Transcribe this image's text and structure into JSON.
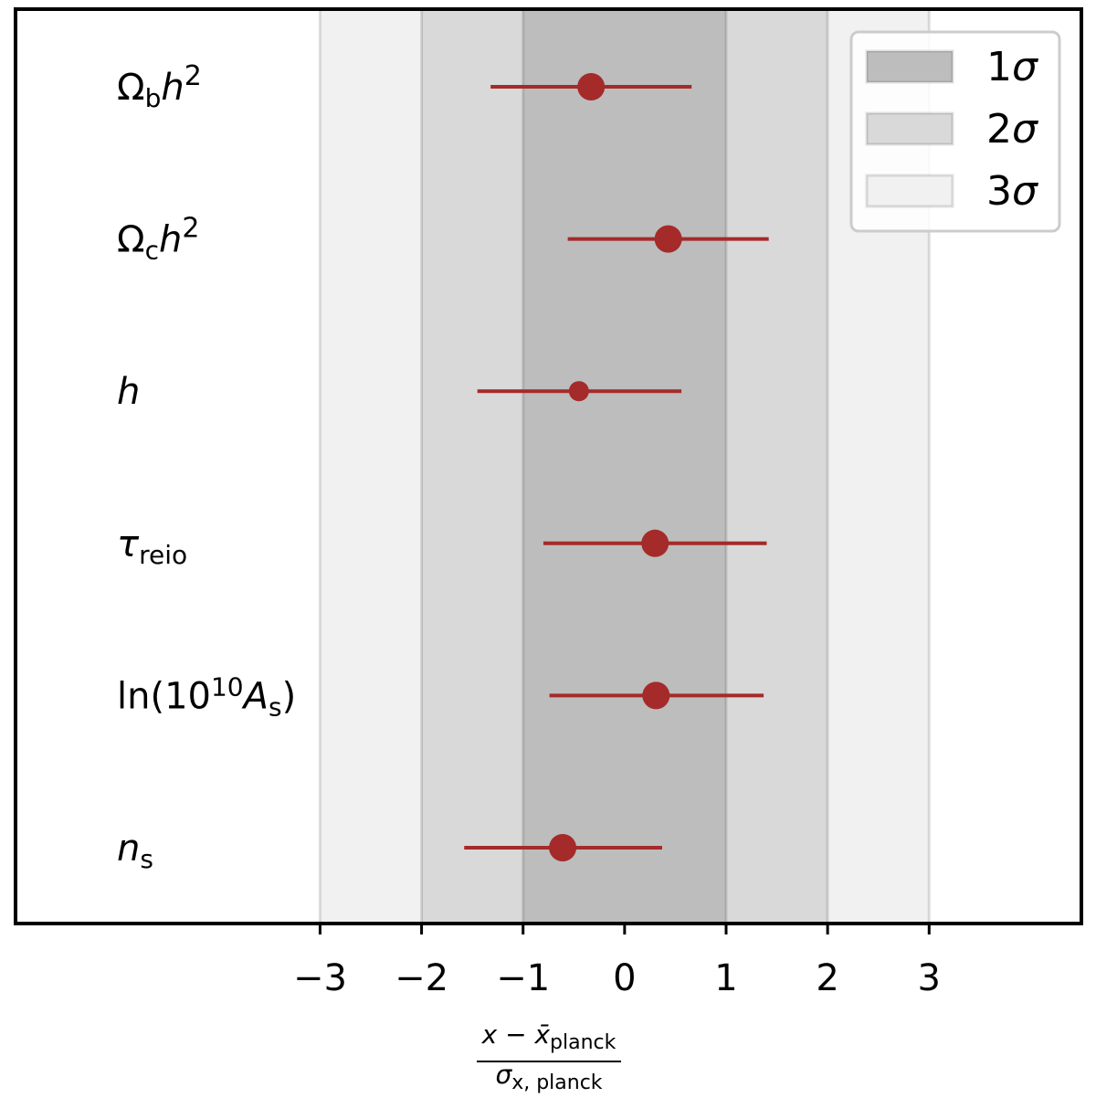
{
  "chart_data": {
    "type": "scatter",
    "subtype": "forest-errorbar",
    "xlim": [
      -6,
      4.5
    ],
    "xticks": [
      -3,
      -2,
      -1,
      0,
      1,
      2,
      3
    ],
    "x_tick_labels": [
      "−3",
      "−2",
      "−1",
      "0",
      "1",
      "2",
      "3"
    ],
    "xlabel": {
      "numerator": "x − x̄",
      "numerator_sub": "planck",
      "denominator": "σ",
      "denominator_sub": "x, planck"
    },
    "bands": [
      {
        "label_num": "1",
        "label_sym": "σ",
        "range": [
          -1,
          1
        ],
        "color": "#bdbdbd"
      },
      {
        "label_num": "2",
        "label_sym": "σ",
        "range": [
          -2,
          2
        ],
        "color": "#d9d9d9"
      },
      {
        "label_num": "3",
        "label_sym": "σ",
        "range": [
          -3,
          3
        ],
        "color": "#f1f1f1"
      }
    ],
    "legend_position": "top-right",
    "marker_color": "#a52a2a",
    "points": [
      {
        "param": "Omega_b h^2",
        "x": -0.33,
        "xerr_low": -1.32,
        "xerr_high": 0.66,
        "size": "large"
      },
      {
        "param": "Omega_c h^2",
        "x": 0.43,
        "xerr_low": -0.56,
        "xerr_high": 1.42,
        "size": "large"
      },
      {
        "param": "h",
        "x": -0.45,
        "xerr_low": -1.45,
        "xerr_high": 0.56,
        "size": "small"
      },
      {
        "param": "tau_reio",
        "x": 0.3,
        "xerr_low": -0.8,
        "xerr_high": 1.4,
        "size": "large"
      },
      {
        "param": "ln(10^10 A_s)",
        "x": 0.31,
        "xerr_low": -0.74,
        "xerr_high": 1.37,
        "size": "large"
      },
      {
        "param": "n_s",
        "x": -0.61,
        "xerr_low": -1.58,
        "xerr_high": 0.37,
        "size": "large"
      }
    ],
    "param_labels": [
      {
        "base": "Ω",
        "sub": "b",
        "var": "h",
        "sup": "2"
      },
      {
        "base": "Ω",
        "sub": "c",
        "var": "h",
        "sup": "2"
      },
      {
        "var": "h"
      },
      {
        "var": "τ",
        "sub": "reio"
      },
      {
        "pre": "ln(10",
        "sup": "10",
        "var": "A",
        "sub": "s",
        "post": ")"
      },
      {
        "var": "n",
        "sub": "s"
      }
    ]
  }
}
